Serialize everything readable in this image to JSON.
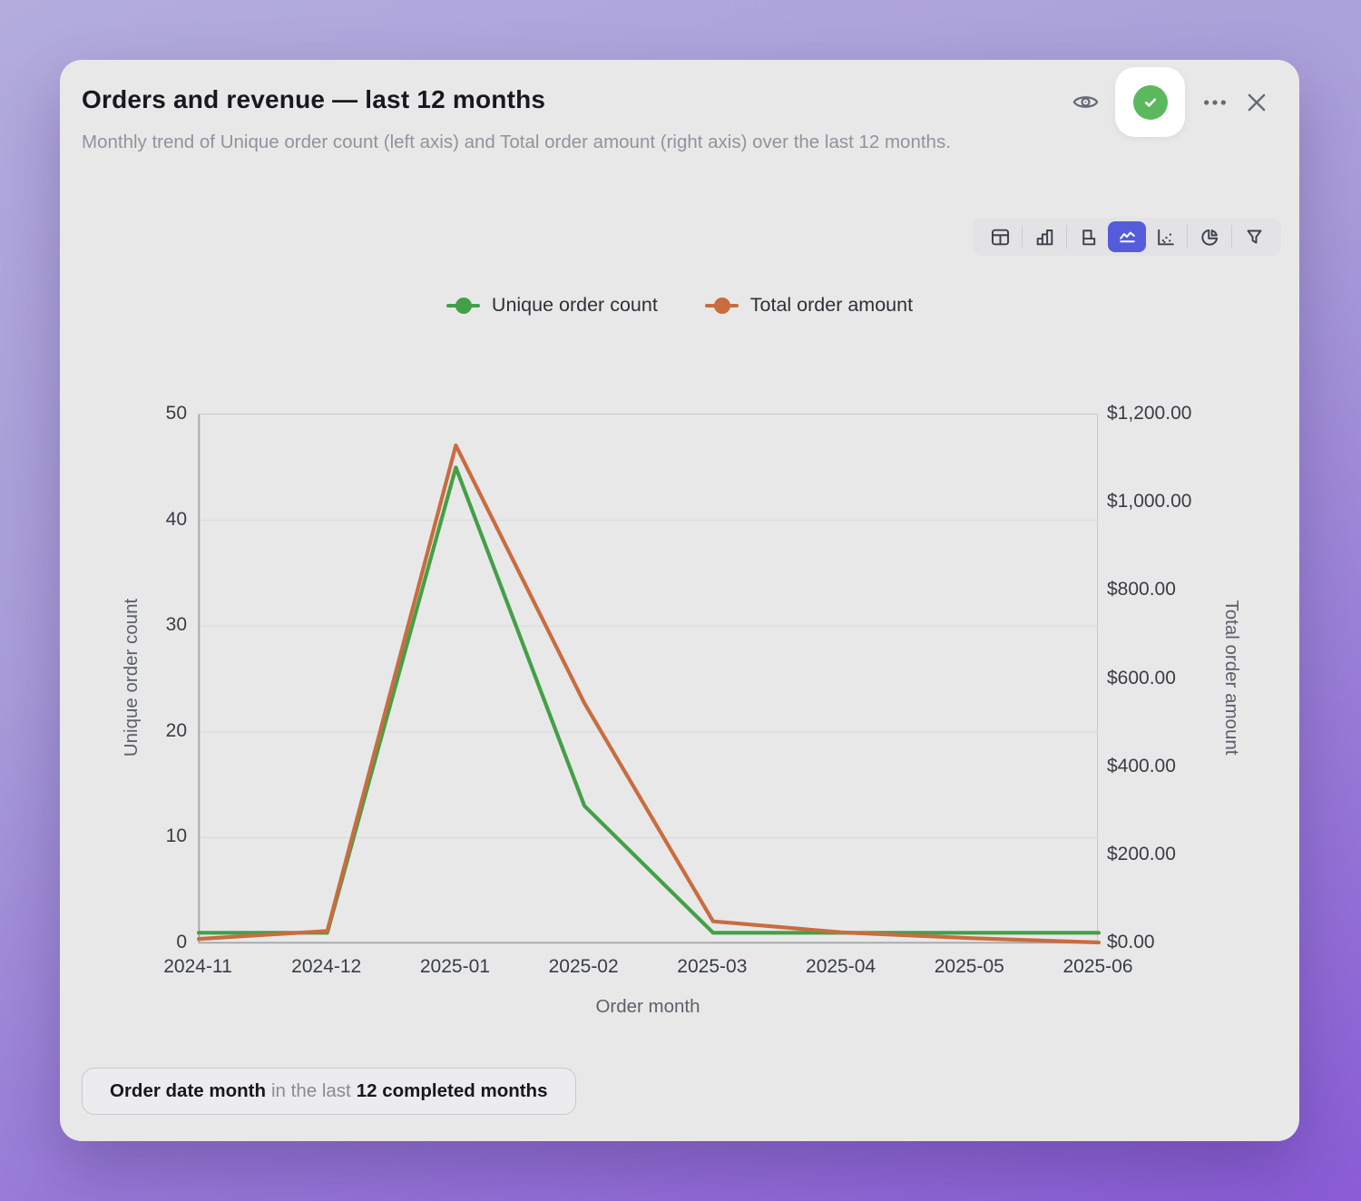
{
  "header": {
    "title": "Orders and revenue — last 12 months",
    "subtitle": "Monthly trend of Unique order count (left axis) and Total order amount (right axis) over the last 12 months."
  },
  "actions": {
    "icons": [
      "eye",
      "approved-check",
      "more-ellipsis",
      "close"
    ]
  },
  "toolbar": {
    "tools": [
      "table",
      "bar-chart",
      "row-chart",
      "area-chart",
      "scatter-plot",
      "pie-chart",
      "filter-funnel"
    ],
    "selected": "area-chart",
    "selected_color": "#555cdb"
  },
  "legend": [
    {
      "label": "Unique order count",
      "color": "#43a047"
    },
    {
      "label": "Total order amount",
      "color": "#c96c3f"
    }
  ],
  "chart_data": {
    "type": "line",
    "x": [
      "2024-11",
      "2024-12",
      "2025-01",
      "2025-02",
      "2025-03",
      "2025-04",
      "2025-05",
      "2025-06"
    ],
    "series": [
      {
        "name": "Unique order count",
        "axis": "left",
        "color": "#43a047",
        "values": [
          1,
          1,
          45,
          13,
          1,
          1,
          1,
          1
        ]
      },
      {
        "name": "Total order amount",
        "axis": "right",
        "color": "#c96c3f",
        "values": [
          10,
          28,
          1130,
          545,
          50,
          25,
          12,
          2
        ]
      }
    ],
    "left_axis": {
      "label": "Unique order count",
      "min": 0,
      "max": 50,
      "tick_values": [
        0,
        10,
        20,
        30,
        40,
        50
      ],
      "tick_labels": [
        "0",
        "10",
        "20",
        "30",
        "40",
        "50"
      ]
    },
    "right_axis": {
      "label": "Total order amount",
      "min": 0,
      "max": 1200,
      "tick_values": [
        0,
        200,
        400,
        600,
        800,
        1000,
        1200
      ],
      "tick_labels": [
        "$0.00",
        "$200.00",
        "$400.00",
        "$600.00",
        "$800.00",
        "$1,000.00",
        "$1,200.00"
      ]
    },
    "xlabel": "Order month",
    "grid": true,
    "legend_position": "top"
  },
  "filter_chip": {
    "field": "Order date month",
    "operator": "in the last",
    "value": "12 completed months"
  }
}
